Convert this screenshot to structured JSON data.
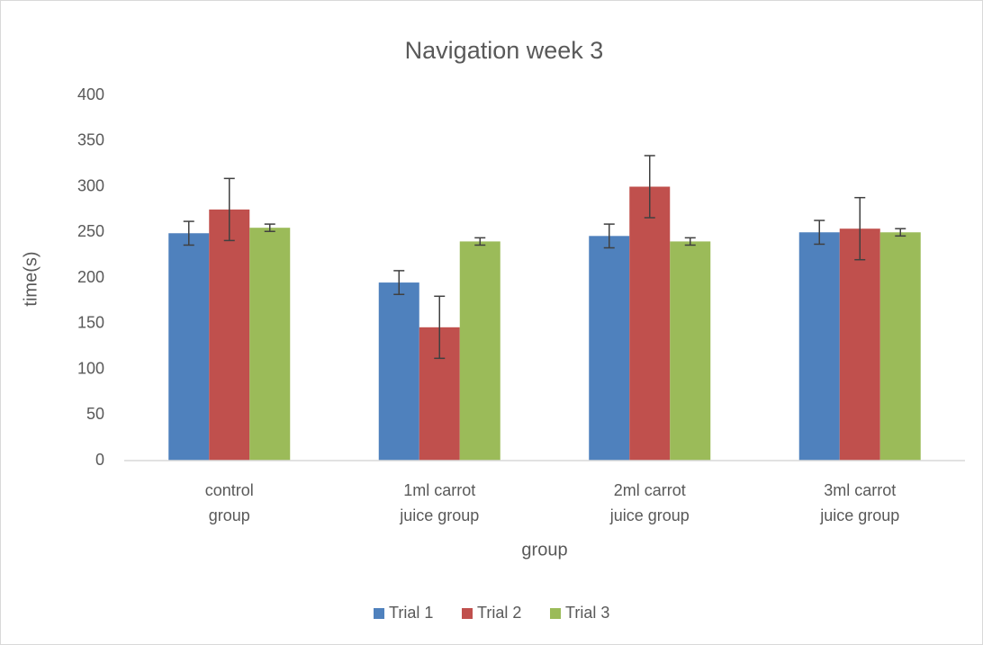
{
  "chart_data": {
    "type": "bar",
    "title": "Navigation week 3",
    "x_label": "group",
    "y_label": "time(s)",
    "categories": [
      [
        "control",
        "group"
      ],
      [
        "1ml carrot",
        "juice group"
      ],
      [
        "2ml carrot",
        "juice group"
      ],
      [
        "3ml carrot",
        "juice group"
      ]
    ],
    "series": [
      {
        "name": "Trial 1",
        "color": "#4f81bd",
        "values": [
          249,
          195,
          246,
          250
        ],
        "errors": [
          13,
          13,
          13,
          13
        ]
      },
      {
        "name": "Trial 2",
        "color": "#c0504d",
        "values": [
          275,
          146,
          300,
          254
        ],
        "errors": [
          34,
          34,
          34,
          34
        ]
      },
      {
        "name": "Trial 3",
        "color": "#9bbb59",
        "values": [
          255,
          240,
          240,
          250
        ],
        "errors": [
          4,
          4,
          4,
          4
        ]
      }
    ],
    "ylim": [
      0,
      400
    ],
    "yticks": [
      0,
      50,
      100,
      150,
      200,
      250,
      300,
      350,
      400
    ],
    "grid": false,
    "legend": "bottom"
  }
}
